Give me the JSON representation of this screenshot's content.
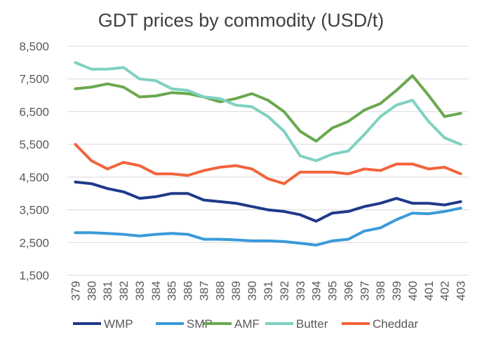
{
  "chart_data": {
    "type": "line",
    "title": "GDT prices by commodity (USD/t)",
    "x": [
      "379",
      "380",
      "381",
      "382",
      "383",
      "384",
      "385",
      "386",
      "387",
      "388",
      "389",
      "390",
      "391",
      "392",
      "393",
      "394",
      "395",
      "396",
      "397",
      "398",
      "399",
      "400",
      "401",
      "402",
      "403"
    ],
    "ylim": [
      1500,
      8500
    ],
    "yticks": [
      1500,
      2500,
      3500,
      4500,
      5500,
      6500,
      7500,
      8500
    ],
    "ytick_labels": [
      "1,500",
      "2,500",
      "3,500",
      "4,500",
      "5,500",
      "6,500",
      "7,500",
      "8,500"
    ],
    "grid": "horizontal",
    "legend_position": "bottom",
    "series": [
      {
        "name": "WMP",
        "color": "#1f3a8a",
        "values": [
          4350,
          4300,
          4150,
          4050,
          3850,
          3900,
          4000,
          4000,
          3800,
          3750,
          3700,
          3600,
          3500,
          3450,
          3350,
          3150,
          3400,
          3450,
          3600,
          3700,
          3850,
          3700,
          3700,
          3650,
          3750
        ]
      },
      {
        "name": "SMP",
        "color": "#3a9ad9",
        "values": [
          2800,
          2800,
          2780,
          2750,
          2700,
          2750,
          2780,
          2750,
          2600,
          2600,
          2580,
          2550,
          2550,
          2530,
          2480,
          2420,
          2550,
          2600,
          2850,
          2950,
          3200,
          3400,
          3380,
          3450,
          3550
        ]
      },
      {
        "name": "AMF",
        "color": "#6aa84f",
        "values": [
          7200,
          7250,
          7350,
          7250,
          6950,
          6980,
          7080,
          7050,
          6950,
          6800,
          6900,
          7050,
          6850,
          6500,
          5900,
          5600,
          6000,
          6200,
          6550,
          6750,
          7150,
          7600,
          7000,
          6350,
          6450
        ]
      },
      {
        "name": "Butter",
        "color": "#7fd1c0",
        "values": [
          8000,
          7800,
          7800,
          7850,
          7500,
          7450,
          7200,
          7150,
          6950,
          6900,
          6700,
          6650,
          6350,
          5900,
          5150,
          5000,
          5200,
          5300,
          5800,
          6350,
          6700,
          6850,
          6200,
          5700,
          5500
        ]
      },
      {
        "name": "Cheddar",
        "color": "#f2643c",
        "values": [
          5500,
          5000,
          4750,
          4950,
          4850,
          4600,
          4600,
          4550,
          4700,
          4800,
          4850,
          4750,
          4450,
          4300,
          4650,
          4650,
          4650,
          4600,
          4750,
          4700,
          4900,
          4900,
          4750,
          4800,
          4600
        ]
      }
    ]
  }
}
